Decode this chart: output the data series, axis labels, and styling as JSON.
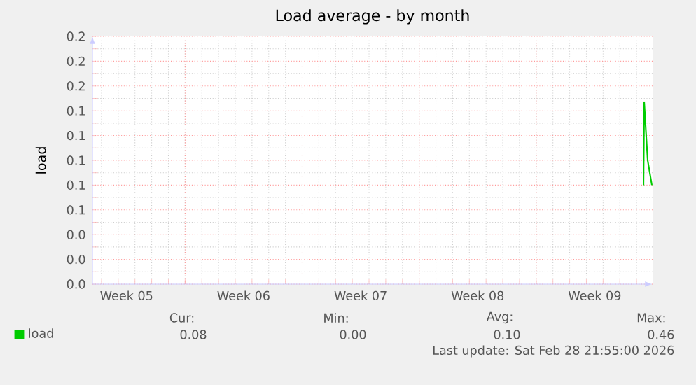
{
  "chart_data": {
    "type": "line",
    "title": "Load average - by month",
    "ylabel": "load",
    "xlim": [
      "2026-01-27T11:00",
      "2026-03-01T23:00"
    ],
    "ylim": [
      0,
      0.2
    ],
    "xticks": [
      {
        "value": "2026-01-29T12:00",
        "label": "Week 05"
      },
      {
        "value": "2026-02-02",
        "label": null
      },
      {
        "value": "2026-02-05T12:00",
        "label": "Week 06"
      },
      {
        "value": "2026-02-09",
        "label": null
      },
      {
        "value": "2026-02-12T12:00",
        "label": "Week 07"
      },
      {
        "value": "2026-02-16",
        "label": null
      },
      {
        "value": "2026-02-19T12:00",
        "label": "Week 08"
      },
      {
        "value": "2026-02-23",
        "label": null
      },
      {
        "value": "2026-02-26T12:00",
        "label": "Week 09"
      }
    ],
    "yticks": [
      {
        "value": 0,
        "label": "0.0"
      },
      {
        "value": 0.02,
        "label": "0.0"
      },
      {
        "value": 0.04,
        "label": "0.0"
      },
      {
        "value": 0.06,
        "label": "0.1"
      },
      {
        "value": 0.08,
        "label": "0.1"
      },
      {
        "value": 0.1,
        "label": "0.1"
      },
      {
        "value": 0.12,
        "label": "0.1"
      },
      {
        "value": 0.14,
        "label": "0.1"
      },
      {
        "value": 0.16,
        "label": "0.2"
      },
      {
        "value": 0.18,
        "label": "0.2"
      },
      {
        "value": 0.2,
        "label": "0.2"
      }
    ],
    "grid": true,
    "legend": "bottom left",
    "series": [
      {
        "name": "load",
        "color": "#00cc00",
        "x": [
          "2026-03-01T10:00",
          "2026-03-01T11:00",
          "2026-03-01T16:00",
          "2026-03-01T22:00"
        ],
        "values": [
          0.08,
          0.147,
          0.1,
          0.08
        ]
      }
    ],
    "annotations": [
      "Cur:",
      "Min:",
      "Avg:",
      "Max:",
      "0.08",
      "0.00",
      "0.10",
      "0.46",
      "Last update: Sat Feb 28 21:55:00 2026"
    ]
  }
}
